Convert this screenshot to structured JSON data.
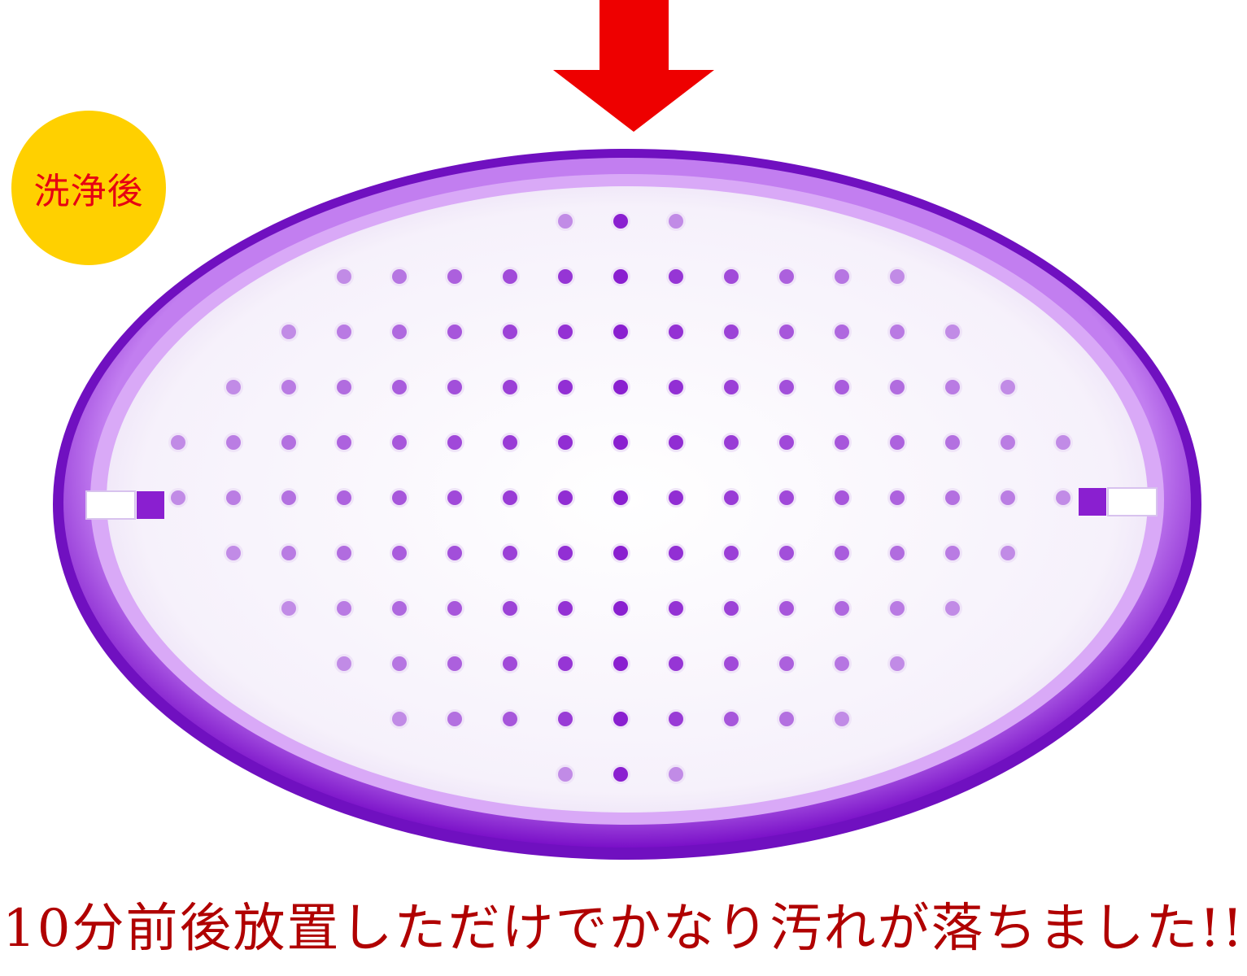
{
  "badge": {
    "label": "洗浄後",
    "background": "#ffd000",
    "text_color": "#e60012"
  },
  "caption": {
    "text": "10分前後放置しただけでかなり汚れが落ちました!!",
    "color": "#b00000"
  },
  "arrow": {
    "icon": "down-arrow-icon",
    "color": "#ee0000"
  },
  "tray": {
    "rim_color": "#9a2fd8",
    "inner_color": "#ffffff",
    "hole_color": "#8a1fd0",
    "rows": [
      3,
      11,
      13,
      15,
      17,
      17,
      15,
      13,
      11,
      9,
      3
    ]
  }
}
